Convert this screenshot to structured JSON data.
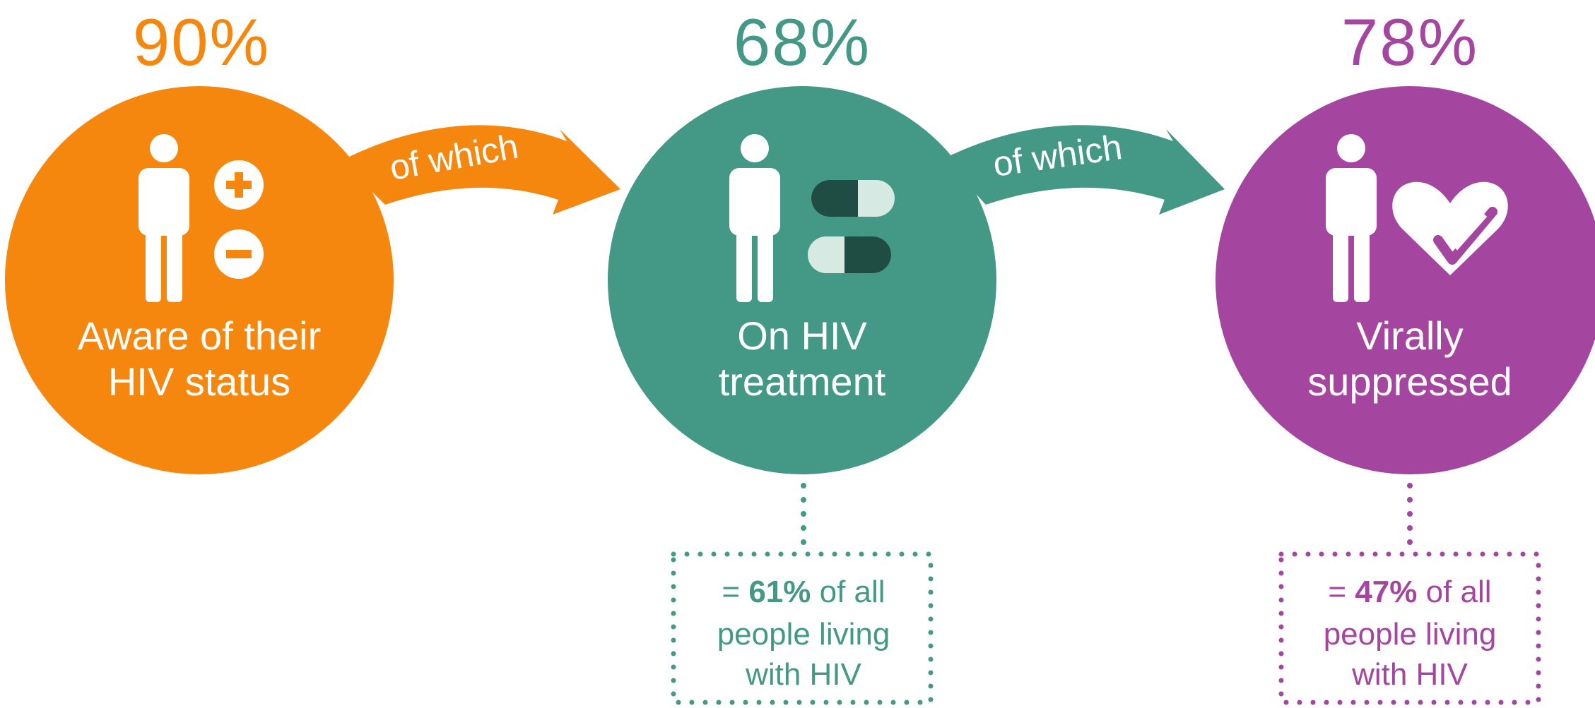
{
  "colors": {
    "orange": "#F5870F",
    "teal": "#439986",
    "purple": "#A4459F",
    "dark_teal": "#1F4D43",
    "light_teal": "#D7E9E3"
  },
  "stages": [
    {
      "percent": "90%",
      "label_line1": "Aware of their",
      "label_line2": "HIV status",
      "icon": "person-plus-minus-icon"
    },
    {
      "percent": "68%",
      "label_line1": "On HIV",
      "label_line2": "treatment",
      "icon": "person-pills-icon"
    },
    {
      "percent": "78%",
      "label_line1": "Virally",
      "label_line2": "suppressed",
      "icon": "person-heart-check-icon"
    }
  ],
  "connectors": [
    {
      "text": "of which"
    },
    {
      "text": "of which"
    }
  ],
  "notes": [
    {
      "prefix": "= ",
      "highlight": "61%",
      "suffix": " of all",
      "line2": "people living",
      "line3": "with HIV"
    },
    {
      "prefix": "= ",
      "highlight": "47%",
      "suffix": " of all",
      "line2": "people living",
      "line3": "with HIV"
    }
  ]
}
